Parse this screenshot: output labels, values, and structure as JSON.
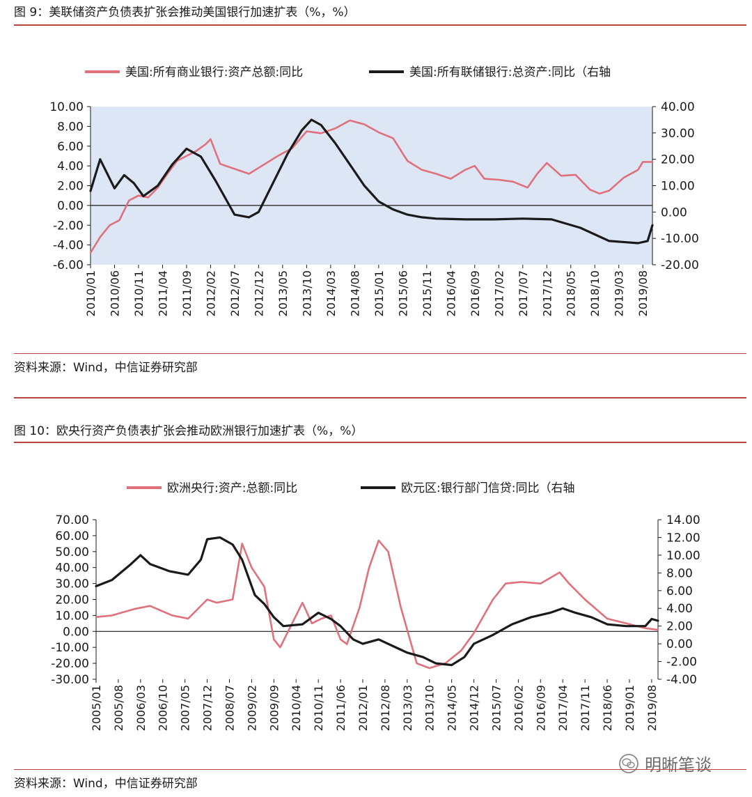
{
  "figure1": {
    "title": "图 9：美联储资产负债表扩张会推动美国银行加速扩表（%，%）",
    "source": "资料来源：Wind，中信证券研究部"
  },
  "figure2": {
    "title": "图 10：欧央行资产负债表扩张会推动欧洲银行加速扩表（%，%）",
    "source": "资料来源：Wind，中信证券研究部"
  },
  "watermark": {
    "text": "明晰笔谈",
    "icon": "wechat-icon"
  },
  "colors": {
    "pink": "#e0707a",
    "black": "#1a1a1a",
    "plot_bg": "#dde6f5",
    "rule": "#b8443d"
  },
  "chart_data": [
    {
      "type": "line",
      "title": "图 9：美联储资产负债表扩张会推动美国银行加速扩表（%，%）",
      "legend_position": "top",
      "ylim": [
        -6,
        10
      ],
      "y2lim": [
        -20,
        40
      ],
      "yticks": [
        "10.00",
        "8.00",
        "6.00",
        "4.00",
        "2.00",
        "0.00",
        "-2.00",
        "-4.00",
        "-6.00"
      ],
      "y2ticks": [
        "40.00",
        "30.00",
        "20.00",
        "10.00",
        "0.00",
        "-10.00",
        "-20.00"
      ],
      "x_ticks": [
        "2010/01",
        "2010/06",
        "2010/11",
        "2011/04",
        "2011/09",
        "2012/02",
        "2012/07",
        "2012/12",
        "2013/05",
        "2013/10",
        "2014/03",
        "2014/08",
        "2015/01",
        "2015/06",
        "2015/11",
        "2016/04",
        "2016/09",
        "2017/02",
        "2017/07",
        "2017/12",
        "2018/05",
        "2018/10",
        "2019/03",
        "2019/08"
      ],
      "x_start": "2010/01",
      "x_end": "2019/10",
      "series": [
        {
          "name": "美国:所有商业银行:资产总额:同比",
          "axis": "left",
          "color": "#e0707a",
          "points": [
            [
              "2010/01",
              -4.8
            ],
            [
              "2010/03",
              -3.2
            ],
            [
              "2010/05",
              -2.0
            ],
            [
              "2010/07",
              -1.5
            ],
            [
              "2010/09",
              0.5
            ],
            [
              "2010/11",
              1.0
            ],
            [
              "2011/01",
              0.8
            ],
            [
              "2011/03",
              1.8
            ],
            [
              "2011/05",
              3.2
            ],
            [
              "2011/07",
              4.5
            ],
            [
              "2011/09",
              5.0
            ],
            [
              "2011/11",
              5.5
            ],
            [
              "2012/01",
              6.2
            ],
            [
              "2012/02",
              6.7
            ],
            [
              "2012/04",
              4.2
            ],
            [
              "2012/07",
              3.7
            ],
            [
              "2012/10",
              3.2
            ],
            [
              "2013/01",
              4.1
            ],
            [
              "2013/04",
              5.0
            ],
            [
              "2013/07",
              5.8
            ],
            [
              "2013/10",
              7.5
            ],
            [
              "2014/01",
              7.3
            ],
            [
              "2014/04",
              7.8
            ],
            [
              "2014/07",
              8.6
            ],
            [
              "2014/10",
              8.2
            ],
            [
              "2015/01",
              7.4
            ],
            [
              "2015/04",
              6.8
            ],
            [
              "2015/07",
              4.5
            ],
            [
              "2015/10",
              3.6
            ],
            [
              "2016/01",
              3.2
            ],
            [
              "2016/04",
              2.7
            ],
            [
              "2016/07",
              3.6
            ],
            [
              "2016/09",
              4.0
            ],
            [
              "2016/11",
              2.7
            ],
            [
              "2017/02",
              2.6
            ],
            [
              "2017/05",
              2.4
            ],
            [
              "2017/08",
              1.8
            ],
            [
              "2017/10",
              3.2
            ],
            [
              "2017/12",
              4.3
            ],
            [
              "2018/03",
              3.0
            ],
            [
              "2018/06",
              3.1
            ],
            [
              "2018/09",
              1.6
            ],
            [
              "2018/11",
              1.2
            ],
            [
              "2019/01",
              1.5
            ],
            [
              "2019/04",
              2.8
            ],
            [
              "2019/07",
              3.6
            ],
            [
              "2019/08",
              4.4
            ],
            [
              "2019/10",
              4.4
            ]
          ]
        },
        {
          "name": "美国:所有联储银行:总资产:同比（右轴",
          "axis": "right",
          "color": "#1a1a1a",
          "points": [
            [
              "2010/01",
              8
            ],
            [
              "2010/03",
              20
            ],
            [
              "2010/06",
              9
            ],
            [
              "2010/08",
              14
            ],
            [
              "2010/10",
              11
            ],
            [
              "2010/12",
              6
            ],
            [
              "2011/03",
              10
            ],
            [
              "2011/06",
              18
            ],
            [
              "2011/09",
              24
            ],
            [
              "2011/12",
              21
            ],
            [
              "2012/03",
              12
            ],
            [
              "2012/07",
              -1
            ],
            [
              "2012/10",
              -2
            ],
            [
              "2012/12",
              0
            ],
            [
              "2013/03",
              11
            ],
            [
              "2013/06",
              22
            ],
            [
              "2013/09",
              31
            ],
            [
              "2013/11",
              35
            ],
            [
              "2014/01",
              33
            ],
            [
              "2014/04",
              26
            ],
            [
              "2014/07",
              18
            ],
            [
              "2014/10",
              10
            ],
            [
              "2015/01",
              4
            ],
            [
              "2015/04",
              1
            ],
            [
              "2015/07",
              -1
            ],
            [
              "2015/10",
              -2
            ],
            [
              "2016/01",
              -2.5
            ],
            [
              "2016/07",
              -2.8
            ],
            [
              "2017/01",
              -2.8
            ],
            [
              "2017/07",
              -2.5
            ],
            [
              "2018/01",
              -2.8
            ],
            [
              "2018/07",
              -6
            ],
            [
              "2019/01",
              -11
            ],
            [
              "2019/07",
              -11.8
            ],
            [
              "2019/09",
              -11
            ],
            [
              "2019/10",
              -5
            ]
          ]
        }
      ]
    },
    {
      "type": "line",
      "title": "图 10：欧央行资产负债表扩张会推动欧洲银行加速扩表（%，%）",
      "legend_position": "top",
      "ylim": [
        -30,
        70
      ],
      "y2lim": [
        -4,
        14
      ],
      "yticks": [
        "70.00",
        "60.00",
        "50.00",
        "40.00",
        "30.00",
        "20.00",
        "10.00",
        "0.00",
        "-10.00",
        "-20.00",
        "-30.00"
      ],
      "y2ticks": [
        "14.00",
        "12.00",
        "10.00",
        "8.00",
        "6.00",
        "4.00",
        "2.00",
        "0.00",
        "-2.00",
        "-4.00"
      ],
      "x_ticks": [
        "2005/01",
        "2005/08",
        "2006/03",
        "2006/10",
        "2007/05",
        "2007/12",
        "2008/07",
        "2009/02",
        "2009/09",
        "2010/04",
        "2010/11",
        "2011/06",
        "2012/01",
        "2012/08",
        "2013/03",
        "2013/10",
        "2014/05",
        "2014/12",
        "2015/07",
        "2016/02",
        "2016/09",
        "2017/04",
        "2017/11",
        "2018/06",
        "2019/01",
        "2019/08"
      ],
      "x_start": "2005/01",
      "x_end": "2019/10",
      "series": [
        {
          "name": "欧洲央行:资产:总额:同比",
          "axis": "left",
          "color": "#e0707a",
          "points": [
            [
              "2005/01",
              9
            ],
            [
              "2005/06",
              10
            ],
            [
              "2006/01",
              14
            ],
            [
              "2006/06",
              16
            ],
            [
              "2007/01",
              10
            ],
            [
              "2007/06",
              8
            ],
            [
              "2007/12",
              20
            ],
            [
              "2008/03",
              18
            ],
            [
              "2008/08",
              20
            ],
            [
              "2008/11",
              55
            ],
            [
              "2009/02",
              40
            ],
            [
              "2009/06",
              28
            ],
            [
              "2009/09",
              -5
            ],
            [
              "2009/11",
              -10
            ],
            [
              "2010/04",
              10
            ],
            [
              "2010/06",
              18
            ],
            [
              "2010/09",
              5
            ],
            [
              "2010/12",
              8
            ],
            [
              "2011/03",
              10
            ],
            [
              "2011/06",
              -5
            ],
            [
              "2011/08",
              -8
            ],
            [
              "2011/12",
              15
            ],
            [
              "2012/03",
              40
            ],
            [
              "2012/06",
              57
            ],
            [
              "2012/09",
              50
            ],
            [
              "2013/01",
              15
            ],
            [
              "2013/06",
              -20
            ],
            [
              "2013/10",
              -23
            ],
            [
              "2014/03",
              -20
            ],
            [
              "2014/08",
              -12
            ],
            [
              "2014/12",
              -1
            ],
            [
              "2015/06",
              20
            ],
            [
              "2015/10",
              30
            ],
            [
              "2016/03",
              31
            ],
            [
              "2016/09",
              30
            ],
            [
              "2017/03",
              37
            ],
            [
              "2017/06",
              30
            ],
            [
              "2017/11",
              20
            ],
            [
              "2018/06",
              8
            ],
            [
              "2018/12",
              5
            ],
            [
              "2019/06",
              2
            ],
            [
              "2019/10",
              1
            ]
          ]
        },
        {
          "name": "欧元区:银行部门信贷:同比（右轴",
          "axis": "right",
          "color": "#1a1a1a",
          "points": [
            [
              "2005/01",
              6.5
            ],
            [
              "2005/06",
              7.2
            ],
            [
              "2005/12",
              9.0
            ],
            [
              "2006/03",
              10.0
            ],
            [
              "2006/06",
              9.0
            ],
            [
              "2006/12",
              8.2
            ],
            [
              "2007/06",
              7.8
            ],
            [
              "2007/10",
              9.5
            ],
            [
              "2007/12",
              11.8
            ],
            [
              "2008/04",
              12.0
            ],
            [
              "2008/08",
              11.2
            ],
            [
              "2008/11",
              9.5
            ],
            [
              "2009/03",
              5.5
            ],
            [
              "2009/06",
              4.5
            ],
            [
              "2009/09",
              3.0
            ],
            [
              "2009/12",
              2.0
            ],
            [
              "2010/06",
              2.2
            ],
            [
              "2010/11",
              3.5
            ],
            [
              "2011/03",
              2.8
            ],
            [
              "2011/06",
              2.0
            ],
            [
              "2011/10",
              0.5
            ],
            [
              "2012/01",
              0.0
            ],
            [
              "2012/06",
              0.5
            ],
            [
              "2012/12",
              -0.5
            ],
            [
              "2013/03",
              -1.0
            ],
            [
              "2013/08",
              -1.5
            ],
            [
              "2013/12",
              -2.2
            ],
            [
              "2014/05",
              -2.4
            ],
            [
              "2014/09",
              -1.5
            ],
            [
              "2014/12",
              0.0
            ],
            [
              "2015/06",
              1.0
            ],
            [
              "2015/12",
              2.2
            ],
            [
              "2016/06",
              3.0
            ],
            [
              "2016/12",
              3.5
            ],
            [
              "2017/04",
              4.0
            ],
            [
              "2017/08",
              3.5
            ],
            [
              "2018/01",
              3.0
            ],
            [
              "2018/06",
              2.2
            ],
            [
              "2018/12",
              2.0
            ],
            [
              "2019/06",
              2.0
            ],
            [
              "2019/08",
              2.8
            ],
            [
              "2019/10",
              2.6
            ]
          ]
        }
      ]
    }
  ]
}
